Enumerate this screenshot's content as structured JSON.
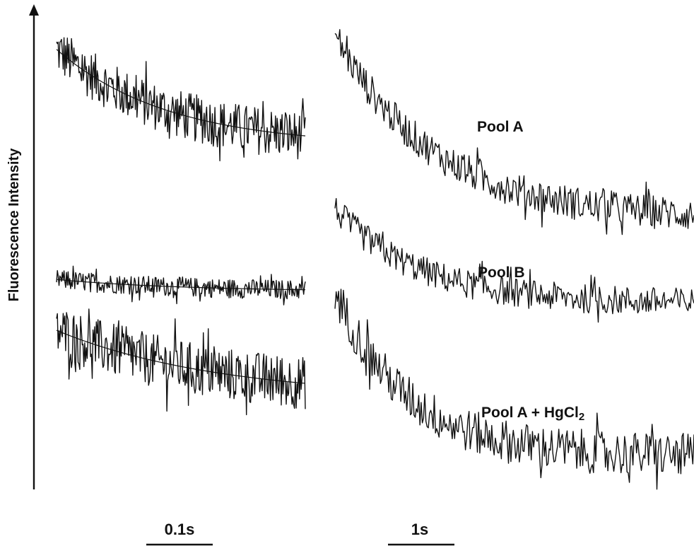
{
  "chart_data": {
    "type": "line",
    "ylabel": "Fluorescence Intensity",
    "panels": [
      {
        "scale_bar_label": "0.1s",
        "scale_bar_seconds": 0.1,
        "time_span_seconds": 0.38,
        "series": [
          {
            "trace_id": "A",
            "start": 0.92,
            "plateau": 0.72,
            "tau": 0.17,
            "noise": 0.05
          },
          {
            "trace_id": "B",
            "start": 0.445,
            "plateau": 0.42,
            "tau": 0.2,
            "noise": 0.02
          },
          {
            "trace_id": "C",
            "start": 0.34,
            "plateau": 0.2,
            "tau": 0.25,
            "noise": 0.055
          }
        ]
      },
      {
        "scale_bar_label": "1s",
        "scale_bar_seconds": 1,
        "time_span_seconds": 5.5,
        "series": [
          {
            "name": "Pool A",
            "start": 0.95,
            "plateau": 0.57,
            "tau": 1.5,
            "noise": 0.035
          },
          {
            "name": "Pool B",
            "start": 0.59,
            "plateau": 0.395,
            "tau": 1.3,
            "noise": 0.03
          },
          {
            "name": "Pool A + HgCl2",
            "start": 0.42,
            "plateau": 0.08,
            "tau": 1.1,
            "noise": 0.045
          }
        ]
      }
    ],
    "grid": false,
    "legend": "none"
  }
}
